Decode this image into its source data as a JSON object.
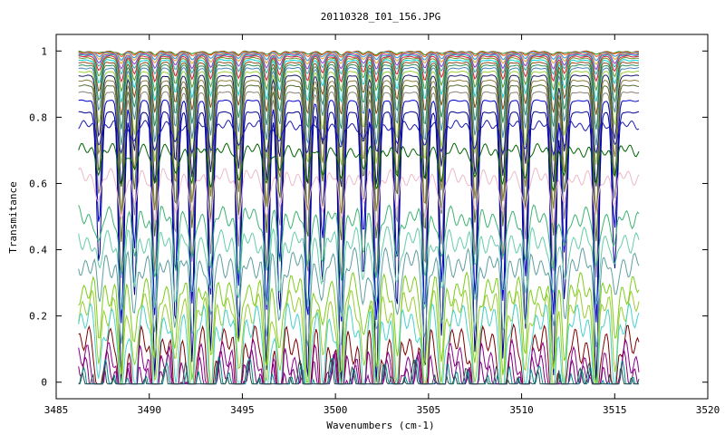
{
  "chart_data": {
    "type": "line",
    "title": "20110328_I01_156.JPG",
    "xlabel": "Wavenumbers (cm-1)",
    "ylabel": "Transmitance",
    "xlim": [
      3485,
      3520
    ],
    "ylim": [
      -0.05,
      1.05
    ],
    "x_ticks": [
      3485,
      3490,
      3495,
      3500,
      3505,
      3510,
      3515,
      3520
    ],
    "x_tick_labels": [
      "3485",
      "3490",
      "3495",
      "3500",
      "3505",
      "3510",
      "3515",
      "3520"
    ],
    "y_ticks": [
      0,
      0.2,
      0.4,
      0.6,
      0.8,
      1
    ],
    "y_tick_labels": [
      "0",
      "0.2",
      "0.4",
      "0.6",
      "0.8",
      "1"
    ],
    "x_data_range": [
      3486.2,
      3516.3
    ],
    "absorption_lines": [
      3487.3,
      3488.5,
      3489.2,
      3490.3,
      3491.4,
      3492.3,
      3493.3,
      3494.8,
      3496.3,
      3497.0,
      3498.5,
      3499.3,
      3500.3,
      3501.5,
      3502.2,
      3503.3,
      3504.8,
      3505.7,
      3507.5,
      3509.0,
      3510.2,
      3511.7,
      3512.3,
      3514.0,
      3515.0
    ],
    "grid": false,
    "legend": "none",
    "series_summary": [
      {
        "color": "#228B22",
        "baseline": 0.998
      },
      {
        "color": "#FF4500",
        "baseline": 0.997
      },
      {
        "color": "#1E90FF",
        "baseline": 0.995
      },
      {
        "color": "#DAA520",
        "baseline": 0.993
      },
      {
        "color": "#9932CC",
        "baseline": 0.99
      },
      {
        "color": "#20B2AA",
        "baseline": 0.987
      },
      {
        "color": "#DC143C",
        "baseline": 0.983
      },
      {
        "color": "#6B8E23",
        "baseline": 0.978
      },
      {
        "color": "#00CED1",
        "baseline": 0.972
      },
      {
        "color": "#8B4513",
        "baseline": 0.965
      },
      {
        "color": "#2E8B57",
        "baseline": 0.957
      },
      {
        "color": "#4682B4",
        "baseline": 0.948
      },
      {
        "color": "#9ACD32",
        "baseline": 0.937
      },
      {
        "color": "#191970",
        "baseline": 0.925
      },
      {
        "color": "#8B7D3A",
        "baseline": 0.91
      },
      {
        "color": "#556B2F",
        "baseline": 0.895
      },
      {
        "color": "#8B8378",
        "baseline": 0.875
      },
      {
        "color": "#0000CD",
        "baseline": 0.85
      },
      {
        "color": "#00008B",
        "baseline": 0.815
      },
      {
        "color": "#1C1CB0",
        "baseline": 0.775
      },
      {
        "color": "#006400",
        "baseline": 0.7
      },
      {
        "color": "#EDB9C8",
        "baseline": 0.62
      },
      {
        "color": "#3CB371",
        "baseline": 0.5
      },
      {
        "color": "#66CDAA",
        "baseline": 0.43
      },
      {
        "color": "#5F9EA0",
        "baseline": 0.36
      },
      {
        "color": "#7CCD1C",
        "baseline": 0.28
      },
      {
        "color": "#9ACD32",
        "baseline": 0.225
      },
      {
        "color": "#48D1CC",
        "baseline": 0.18
      },
      {
        "color": "#800000",
        "baseline": 0.11
      },
      {
        "color": "#8B008B",
        "baseline": 0.06
      },
      {
        "color": "#800080",
        "baseline": 0.028
      },
      {
        "color": "#008B8B",
        "baseline": 0.005
      },
      {
        "color": "#2F4F4F",
        "baseline": 0.0
      }
    ]
  }
}
